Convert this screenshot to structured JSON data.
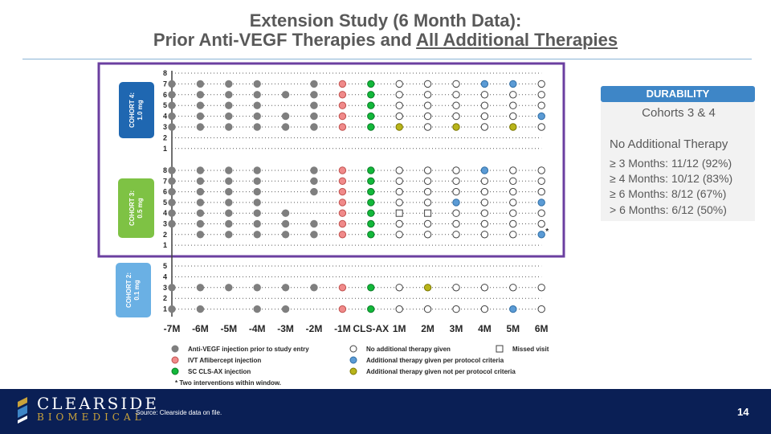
{
  "title": {
    "line1": "Extension Study (6 Month Data):",
    "line2_prefix": "Prior Anti-VEGF Therapies and ",
    "line2_underlined": "All Additional Therapies"
  },
  "colors": {
    "navy": "#0a1f55",
    "accent_blue": "#3e86c7",
    "purple": "#6b3fa0",
    "cohort4": "#1f67b1",
    "cohort3": "#7ec244",
    "cohort2": "#6ab0e4",
    "dot_gray": "#7f7f7f",
    "dot_pink": "#f08a8a",
    "dot_green": "#12b83a",
    "dot_blue": "#5b9bd5",
    "dot_olive": "#b8b41a"
  },
  "cohorts": [
    {
      "label_line1": "COHORT 4:",
      "label_line2": "1.0  mg"
    },
    {
      "label_line1": "COHORT 3:",
      "label_line2": "0.5 mg"
    },
    {
      "label_line1": "COHORT 2:",
      "label_line2": "0.1 mg"
    }
  ],
  "chart_data": {
    "type": "scatter",
    "title": "Prior Anti-VEGF Therapies and All Additional Therapies",
    "x_tick_labels": [
      "-7M",
      "-6M",
      "-5M",
      "-4M",
      "-3M",
      "-2M",
      "-1M",
      "CLS-AX",
      "1M",
      "2M",
      "3M",
      "4M",
      "5M",
      "6M"
    ],
    "codes": {
      "G": "Anti-VEGF injection prior to study entry",
      "P": "IVT Aflibercept injection",
      "S": "SC CLS-AX injection",
      "O": "No additional therapy given",
      "B": "Additional therapy given per protocol criteria",
      "Y": "Additional therapy given not per protocol criteria",
      "M": "Missed visit",
      ".": "no marker"
    },
    "groups": [
      {
        "cohort": "Cohort 4",
        "dose": "1.0 mg",
        "rows": [
          {
            "patient": "8",
            "marks": ".............."
          },
          {
            "patient": "7",
            "marks": "GGGG.GPSOOOBBO"
          },
          {
            "patient": "6",
            "marks": "GGGGGGPSOOOOOO"
          },
          {
            "patient": "5",
            "marks": "GGGG.GPSOOOOOO"
          },
          {
            "patient": "4",
            "marks": "GGGGGGPSOOOOOB"
          },
          {
            "patient": "3",
            "marks": "GGGGGGPSYOYOYO"
          },
          {
            "patient": "2",
            "marks": ".............."
          },
          {
            "patient": "1",
            "marks": ".............."
          }
        ]
      },
      {
        "cohort": "Cohort 3",
        "dose": "0.5 mg",
        "rows": [
          {
            "patient": "8",
            "marks": "GGGG.GPSOOOBOO"
          },
          {
            "patient": "7",
            "marks": "GGGG.GPSOOOOOO"
          },
          {
            "patient": "6",
            "marks": "GGGG.GPSOOOOOO"
          },
          {
            "patient": "5",
            "marks": "GGGG..PSOOBOOB"
          },
          {
            "patient": "4",
            "marks": "GGGGG.PSMMOOOO"
          },
          {
            "patient": "3",
            "marks": "GGGGGGPSOOOOOO"
          },
          {
            "patient": "2",
            "marks": ".GGGGGPSOOOOOB"
          },
          {
            "patient": "1",
            "marks": ".............."
          }
        ]
      },
      {
        "cohort": "Cohort 2",
        "dose": "0.1 mg",
        "rows": [
          {
            "patient": "5",
            "marks": ".............."
          },
          {
            "patient": "4",
            "marks": ".............."
          },
          {
            "patient": "3",
            "marks": "GGGGGGPSOYOOOO"
          },
          {
            "patient": "2",
            "marks": ".............."
          },
          {
            "patient": "1",
            "marks": "GG.GG.PSOOOOBO"
          }
        ]
      }
    ],
    "annotations": [
      {
        "group": "Cohort 3",
        "patient": "2",
        "column": "6M",
        "text": "*"
      }
    ],
    "legend": [
      {
        "code": "G",
        "label": "Anti-VEGF injection prior to study entry"
      },
      {
        "code": "O",
        "label": "No additional therapy given"
      },
      {
        "code": "M",
        "label": "Missed visit"
      },
      {
        "code": "P",
        "label": "IVT Aflibercept injection"
      },
      {
        "code": "B",
        "label": "Additional therapy given per protocol criteria"
      },
      {
        "code": "S",
        "label": "SC CLS-AX injection"
      },
      {
        "code": "Y",
        "label": "Additional therapy given not per protocol criteria"
      }
    ],
    "footnote": "* Two interventions within window."
  },
  "durability": {
    "header": "DURABILITY",
    "subtitle": "Cohorts 3 & 4",
    "heading": "No Additional Therapy",
    "lines": [
      "≥ 3 Months: 11/12 (92%)",
      "≥ 4 Months: 10/12 (83%)",
      "≥ 6 Months: 8/12 (67%)",
      "> 6 Months: 6/12 (50%)"
    ]
  },
  "footer": {
    "company": "CLEARSIDE",
    "division": "BIOMEDICAL",
    "source": "Source: Clearside data on file.",
    "page": "14"
  }
}
